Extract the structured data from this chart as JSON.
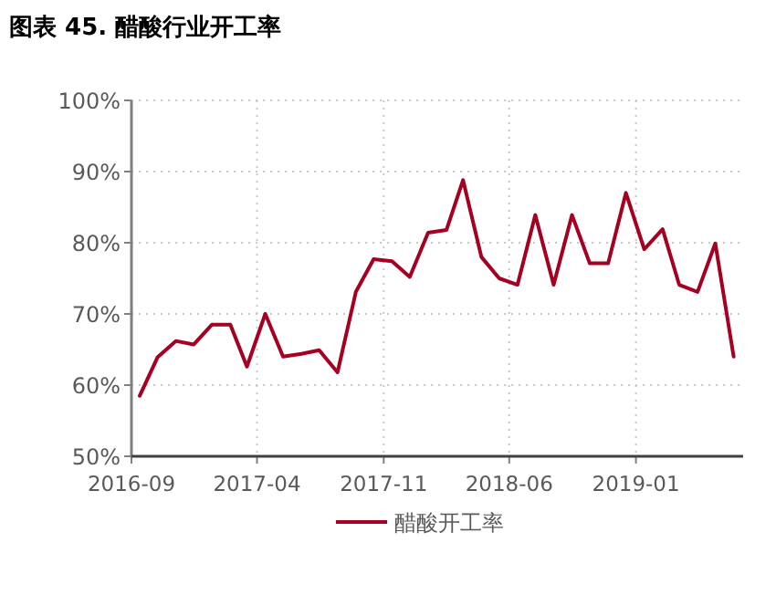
{
  "chart_data": {
    "type": "line",
    "title": "图表 45. 醋酸行业开工率",
    "x": [
      "2016-09-15",
      "2016-10-15",
      "2016-11-15",
      "2016-12-15",
      "2017-01-15",
      "2017-02-15",
      "2017-03-15",
      "2017-04-15",
      "2017-05-15",
      "2017-06-15",
      "2017-07-15",
      "2017-08-15",
      "2017-09-15",
      "2017-10-15",
      "2017-11-15",
      "2017-12-15",
      "2018-01-15",
      "2018-02-15",
      "2018-03-15",
      "2018-04-15",
      "2018-05-15",
      "2018-06-15",
      "2018-07-15",
      "2018-08-15",
      "2018-09-15",
      "2018-10-15",
      "2018-11-15",
      "2018-12-15",
      "2019-01-15",
      "2019-02-15",
      "2019-03-15",
      "2019-04-15",
      "2019-05-15",
      "2019-06-15"
    ],
    "series": [
      {
        "name": "醋酸开工率",
        "color": "#a50021",
        "values": [
          58.5,
          63.9,
          66.2,
          65.7,
          68.5,
          68.5,
          62.6,
          70.0,
          64.0,
          64.4,
          64.9,
          61.8,
          73.1,
          77.7,
          77.4,
          75.2,
          81.4,
          81.8,
          88.8,
          78.0,
          75.0,
          74.1,
          83.9,
          74.1,
          83.9,
          77.1,
          77.1,
          87.0,
          79.1,
          81.9,
          74.1,
          73.1,
          79.9,
          64.0
        ]
      }
    ],
    "xlim": [
      "2016-09-01",
      "2019-07-01"
    ],
    "xticks": [
      {
        "value": "2016-09-01",
        "label": "2016-09"
      },
      {
        "value": "2017-04-01",
        "label": "2017-04"
      },
      {
        "value": "2017-11-01",
        "label": "2017-11"
      },
      {
        "value": "2018-06-01",
        "label": "2018-06"
      },
      {
        "value": "2019-01-01",
        "label": "2019-01"
      }
    ],
    "ylim": [
      50,
      100
    ],
    "yticks": [
      {
        "value": 50,
        "label": "50%"
      },
      {
        "value": 60,
        "label": "60%"
      },
      {
        "value": 70,
        "label": "70%"
      },
      {
        "value": 80,
        "label": "80%"
      },
      {
        "value": 90,
        "label": "90%"
      },
      {
        "value": 100,
        "label": "100%"
      }
    ],
    "grid": true,
    "legend": "bottom",
    "marker": "none",
    "line_style": "solid"
  }
}
